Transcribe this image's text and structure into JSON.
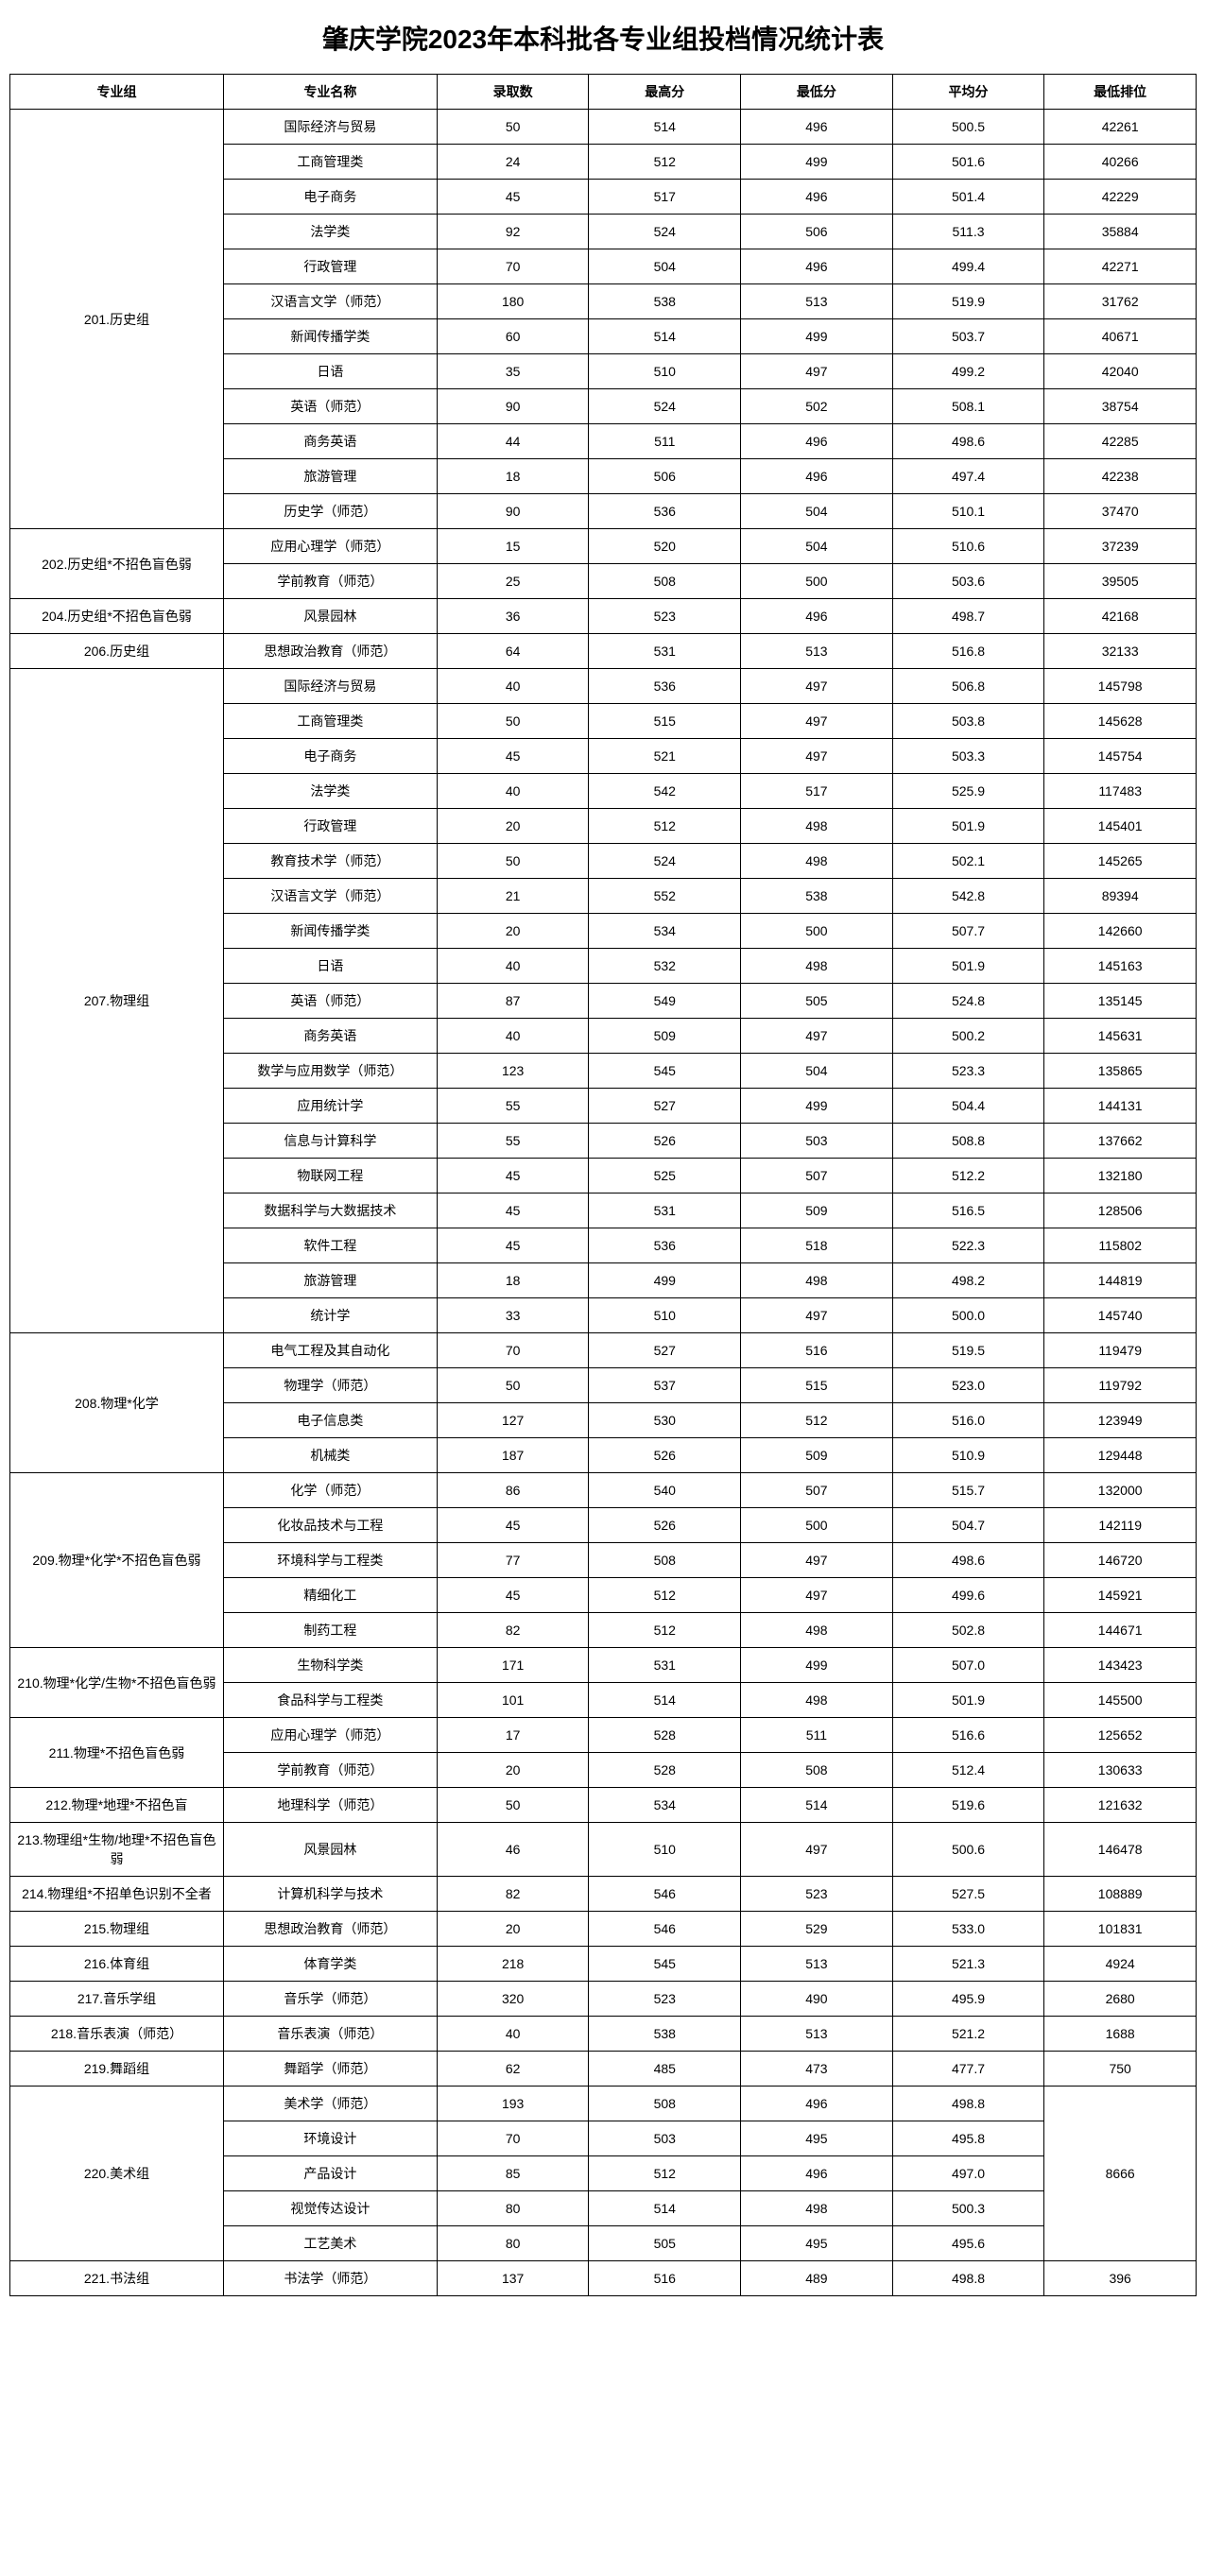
{
  "title": "肇庆学院2023年本科批各专业组投档情况统计表",
  "headers": [
    "专业组",
    "专业名称",
    "录取数",
    "最高分",
    "最低分",
    "平均分",
    "最低排位"
  ],
  "groups": [
    {
      "name": "201.历史组",
      "rows": [
        {
          "major": "国际经济与贸易",
          "count": "50",
          "max": "514",
          "min": "496",
          "avg": "500.5",
          "rank": "42261"
        },
        {
          "major": "工商管理类",
          "count": "24",
          "max": "512",
          "min": "499",
          "avg": "501.6",
          "rank": "40266"
        },
        {
          "major": "电子商务",
          "count": "45",
          "max": "517",
          "min": "496",
          "avg": "501.4",
          "rank": "42229"
        },
        {
          "major": "法学类",
          "count": "92",
          "max": "524",
          "min": "506",
          "avg": "511.3",
          "rank": "35884"
        },
        {
          "major": "行政管理",
          "count": "70",
          "max": "504",
          "min": "496",
          "avg": "499.4",
          "rank": "42271"
        },
        {
          "major": "汉语言文学（师范）",
          "count": "180",
          "max": "538",
          "min": "513",
          "avg": "519.9",
          "rank": "31762"
        },
        {
          "major": "新闻传播学类",
          "count": "60",
          "max": "514",
          "min": "499",
          "avg": "503.7",
          "rank": "40671"
        },
        {
          "major": "日语",
          "count": "35",
          "max": "510",
          "min": "497",
          "avg": "499.2",
          "rank": "42040"
        },
        {
          "major": "英语（师范）",
          "count": "90",
          "max": "524",
          "min": "502",
          "avg": "508.1",
          "rank": "38754"
        },
        {
          "major": "商务英语",
          "count": "44",
          "max": "511",
          "min": "496",
          "avg": "498.6",
          "rank": "42285"
        },
        {
          "major": "旅游管理",
          "count": "18",
          "max": "506",
          "min": "496",
          "avg": "497.4",
          "rank": "42238"
        },
        {
          "major": "历史学（师范）",
          "count": "90",
          "max": "536",
          "min": "504",
          "avg": "510.1",
          "rank": "37470"
        }
      ]
    },
    {
      "name": "202.历史组*不招色盲色弱",
      "rows": [
        {
          "major": "应用心理学（师范）",
          "count": "15",
          "max": "520",
          "min": "504",
          "avg": "510.6",
          "rank": "37239"
        },
        {
          "major": "学前教育（师范）",
          "count": "25",
          "max": "508",
          "min": "500",
          "avg": "503.6",
          "rank": "39505"
        }
      ]
    },
    {
      "name": "204.历史组*不招色盲色弱",
      "rows": [
        {
          "major": "风景园林",
          "count": "36",
          "max": "523",
          "min": "496",
          "avg": "498.7",
          "rank": "42168"
        }
      ]
    },
    {
      "name": "206.历史组",
      "rows": [
        {
          "major": "思想政治教育（师范）",
          "count": "64",
          "max": "531",
          "min": "513",
          "avg": "516.8",
          "rank": "32133"
        }
      ]
    },
    {
      "name": "207.物理组",
      "rows": [
        {
          "major": "国际经济与贸易",
          "count": "40",
          "max": "536",
          "min": "497",
          "avg": "506.8",
          "rank": "145798"
        },
        {
          "major": "工商管理类",
          "count": "50",
          "max": "515",
          "min": "497",
          "avg": "503.8",
          "rank": "145628"
        },
        {
          "major": "电子商务",
          "count": "45",
          "max": "521",
          "min": "497",
          "avg": "503.3",
          "rank": "145754"
        },
        {
          "major": "法学类",
          "count": "40",
          "max": "542",
          "min": "517",
          "avg": "525.9",
          "rank": "117483"
        },
        {
          "major": "行政管理",
          "count": "20",
          "max": "512",
          "min": "498",
          "avg": "501.9",
          "rank": "145401"
        },
        {
          "major": "教育技术学（师范）",
          "count": "50",
          "max": "524",
          "min": "498",
          "avg": "502.1",
          "rank": "145265"
        },
        {
          "major": "汉语言文学（师范）",
          "count": "21",
          "max": "552",
          "min": "538",
          "avg": "542.8",
          "rank": "89394"
        },
        {
          "major": "新闻传播学类",
          "count": "20",
          "max": "534",
          "min": "500",
          "avg": "507.7",
          "rank": "142660"
        },
        {
          "major": "日语",
          "count": "40",
          "max": "532",
          "min": "498",
          "avg": "501.9",
          "rank": "145163"
        },
        {
          "major": "英语（师范）",
          "count": "87",
          "max": "549",
          "min": "505",
          "avg": "524.8",
          "rank": "135145"
        },
        {
          "major": "商务英语",
          "count": "40",
          "max": "509",
          "min": "497",
          "avg": "500.2",
          "rank": "145631"
        },
        {
          "major": "数学与应用数学（师范）",
          "count": "123",
          "max": "545",
          "min": "504",
          "avg": "523.3",
          "rank": "135865"
        },
        {
          "major": "应用统计学",
          "count": "55",
          "max": "527",
          "min": "499",
          "avg": "504.4",
          "rank": "144131"
        },
        {
          "major": "信息与计算科学",
          "count": "55",
          "max": "526",
          "min": "503",
          "avg": "508.8",
          "rank": "137662"
        },
        {
          "major": "物联网工程",
          "count": "45",
          "max": "525",
          "min": "507",
          "avg": "512.2",
          "rank": "132180"
        },
        {
          "major": "数据科学与大数据技术",
          "count": "45",
          "max": "531",
          "min": "509",
          "avg": "516.5",
          "rank": "128506"
        },
        {
          "major": "软件工程",
          "count": "45",
          "max": "536",
          "min": "518",
          "avg": "522.3",
          "rank": "115802"
        },
        {
          "major": "旅游管理",
          "count": "18",
          "max": "499",
          "min": "498",
          "avg": "498.2",
          "rank": "144819"
        },
        {
          "major": "统计学",
          "count": "33",
          "max": "510",
          "min": "497",
          "avg": "500.0",
          "rank": "145740"
        }
      ]
    },
    {
      "name": "208.物理*化学",
      "rows": [
        {
          "major": "电气工程及其自动化",
          "count": "70",
          "max": "527",
          "min": "516",
          "avg": "519.5",
          "rank": "119479"
        },
        {
          "major": "物理学（师范）",
          "count": "50",
          "max": "537",
          "min": "515",
          "avg": "523.0",
          "rank": "119792"
        },
        {
          "major": "电子信息类",
          "count": "127",
          "max": "530",
          "min": "512",
          "avg": "516.0",
          "rank": "123949"
        },
        {
          "major": "机械类",
          "count": "187",
          "max": "526",
          "min": "509",
          "avg": "510.9",
          "rank": "129448"
        }
      ]
    },
    {
      "name": "209.物理*化学*不招色盲色弱",
      "rows": [
        {
          "major": "化学（师范）",
          "count": "86",
          "max": "540",
          "min": "507",
          "avg": "515.7",
          "rank": "132000"
        },
        {
          "major": "化妆品技术与工程",
          "count": "45",
          "max": "526",
          "min": "500",
          "avg": "504.7",
          "rank": "142119"
        },
        {
          "major": "环境科学与工程类",
          "count": "77",
          "max": "508",
          "min": "497",
          "avg": "498.6",
          "rank": "146720"
        },
        {
          "major": "精细化工",
          "count": "45",
          "max": "512",
          "min": "497",
          "avg": "499.6",
          "rank": "145921"
        },
        {
          "major": "制药工程",
          "count": "82",
          "max": "512",
          "min": "498",
          "avg": "502.8",
          "rank": "144671"
        }
      ]
    },
    {
      "name": "210.物理*化学/生物*不招色盲色弱",
      "rows": [
        {
          "major": "生物科学类",
          "count": "171",
          "max": "531",
          "min": "499",
          "avg": "507.0",
          "rank": "143423"
        },
        {
          "major": "食品科学与工程类",
          "count": "101",
          "max": "514",
          "min": "498",
          "avg": "501.9",
          "rank": "145500"
        }
      ]
    },
    {
      "name": "211.物理*不招色盲色弱",
      "rows": [
        {
          "major": "应用心理学（师范）",
          "count": "17",
          "max": "528",
          "min": "511",
          "avg": "516.6",
          "rank": "125652"
        },
        {
          "major": "学前教育（师范）",
          "count": "20",
          "max": "528",
          "min": "508",
          "avg": "512.4",
          "rank": "130633"
        }
      ]
    },
    {
      "name": "212.物理*地理*不招色盲",
      "rows": [
        {
          "major": "地理科学（师范）",
          "count": "50",
          "max": "534",
          "min": "514",
          "avg": "519.6",
          "rank": "121632"
        }
      ]
    },
    {
      "name": "213.物理组*生物/地理*不招色盲色弱",
      "rows": [
        {
          "major": "风景园林",
          "count": "46",
          "max": "510",
          "min": "497",
          "avg": "500.6",
          "rank": "146478"
        }
      ]
    },
    {
      "name": "214.物理组*不招单色识别不全者",
      "rows": [
        {
          "major": "计算机科学与技术",
          "count": "82",
          "max": "546",
          "min": "523",
          "avg": "527.5",
          "rank": "108889"
        }
      ]
    },
    {
      "name": "215.物理组",
      "rows": [
        {
          "major": "思想政治教育（师范）",
          "count": "20",
          "max": "546",
          "min": "529",
          "avg": "533.0",
          "rank": "101831"
        }
      ]
    },
    {
      "name": "216.体育组",
      "rows": [
        {
          "major": "体育学类",
          "count": "218",
          "max": "545",
          "min": "513",
          "avg": "521.3",
          "rank": "4924"
        }
      ]
    },
    {
      "name": "217.音乐学组",
      "rows": [
        {
          "major": "音乐学（师范）",
          "count": "320",
          "max": "523",
          "min": "490",
          "avg": "495.9",
          "rank": "2680"
        }
      ]
    },
    {
      "name": "218.音乐表演（师范）",
      "rows": [
        {
          "major": "音乐表演（师范）",
          "count": "40",
          "max": "538",
          "min": "513",
          "avg": "521.2",
          "rank": "1688"
        }
      ]
    },
    {
      "name": "219.舞蹈组",
      "rows": [
        {
          "major": "舞蹈学（师范）",
          "count": "62",
          "max": "485",
          "min": "473",
          "avg": "477.7",
          "rank": "750"
        }
      ]
    },
    {
      "name": "220.美术组",
      "sharedRank": "8666",
      "rows": [
        {
          "major": "美术学（师范）",
          "count": "193",
          "max": "508",
          "min": "496",
          "avg": "498.8"
        },
        {
          "major": "环境设计",
          "count": "70",
          "max": "503",
          "min": "495",
          "avg": "495.8"
        },
        {
          "major": "产品设计",
          "count": "85",
          "max": "512",
          "min": "496",
          "avg": "497.0"
        },
        {
          "major": "视觉传达设计",
          "count": "80",
          "max": "514",
          "min": "498",
          "avg": "500.3"
        },
        {
          "major": "工艺美术",
          "count": "80",
          "max": "505",
          "min": "495",
          "avg": "495.6"
        }
      ]
    },
    {
      "name": "221.书法组",
      "rows": [
        {
          "major": "书法学（师范）",
          "count": "137",
          "max": "516",
          "min": "489",
          "avg": "498.8",
          "rank": "396"
        }
      ]
    }
  ]
}
